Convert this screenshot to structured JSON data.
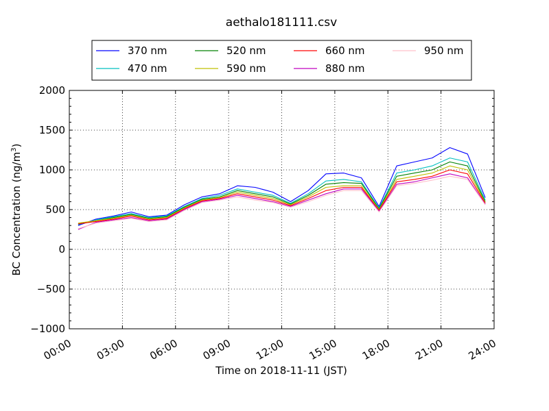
{
  "chart_data": {
    "type": "line",
    "title": "aethalo181111.csv",
    "xlabel": "Time on 2018-11-11 (JST)",
    "ylabel_main": "BC Concentration (ng/m",
    "ylabel_sup": "3",
    "ylabel_end": ")",
    "xlim": [
      0,
      24
    ],
    "ylim": [
      -1000,
      2000
    ],
    "grid": true,
    "legend_placement": "top-center",
    "x_tick_values": [
      0,
      3,
      6,
      9,
      12,
      15,
      18,
      21,
      24
    ],
    "x_tick_labels": [
      "00:00",
      "03:00",
      "06:00",
      "09:00",
      "12:00",
      "15:00",
      "18:00",
      "21:00",
      "24:00"
    ],
    "y_tick_values": [
      -1000,
      -500,
      0,
      500,
      1000,
      1500,
      2000
    ],
    "y_tick_labels": [
      "−1000",
      "−500",
      "0",
      "500",
      "1000",
      "1500",
      "2000"
    ],
    "series": [
      {
        "name": "370 nm",
        "color": "#0000ff",
        "values": [
          300,
          380,
          420,
          470,
          410,
          430,
          560,
          660,
          700,
          800,
          780,
          720,
          600,
          740,
          950,
          960,
          900,
          540,
          1050,
          1100,
          1150,
          1280,
          1200,
          650
        ]
      },
      {
        "name": "470 nm",
        "color": "#00bfbf",
        "values": [
          310,
          370,
          410,
          450,
          400,
          420,
          540,
          640,
          680,
          760,
          720,
          680,
          580,
          700,
          860,
          880,
          850,
          520,
          960,
          1000,
          1050,
          1150,
          1100,
          620
        ]
      },
      {
        "name": "520 nm",
        "color": "#008000",
        "values": [
          320,
          360,
          400,
          440,
          390,
          410,
          530,
          630,
          660,
          740,
          700,
          660,
          570,
          680,
          820,
          840,
          830,
          510,
          920,
          960,
          1000,
          1100,
          1050,
          600
        ]
      },
      {
        "name": "590 nm",
        "color": "#bfbf00",
        "values": [
          330,
          360,
          390,
          430,
          380,
          400,
          520,
          620,
          650,
          720,
          680,
          640,
          560,
          660,
          780,
          800,
          800,
          500,
          880,
          920,
          960,
          1050,
          1000,
          590
        ]
      },
      {
        "name": "660 nm",
        "color": "#ff0000",
        "values": [
          320,
          350,
          380,
          420,
          370,
          390,
          510,
          610,
          640,
          700,
          660,
          620,
          550,
          640,
          740,
          780,
          780,
          490,
          850,
          880,
          920,
          1000,
          950,
          580
        ]
      },
      {
        "name": "880 nm",
        "color": "#bf00bf",
        "values": [
          250,
          340,
          370,
          400,
          360,
          380,
          500,
          600,
          630,
          680,
          640,
          600,
          540,
          620,
          700,
          760,
          760,
          480,
          820,
          850,
          900,
          950,
          900,
          570
        ]
      },
      {
        "name": "950 nm",
        "color": "#ffc0cb",
        "values": [
          260,
          330,
          360,
          390,
          350,
          370,
          490,
          590,
          620,
          660,
          620,
          590,
          530,
          600,
          680,
          740,
          740,
          470,
          800,
          830,
          870,
          920,
          880,
          560
        ]
      }
    ]
  }
}
